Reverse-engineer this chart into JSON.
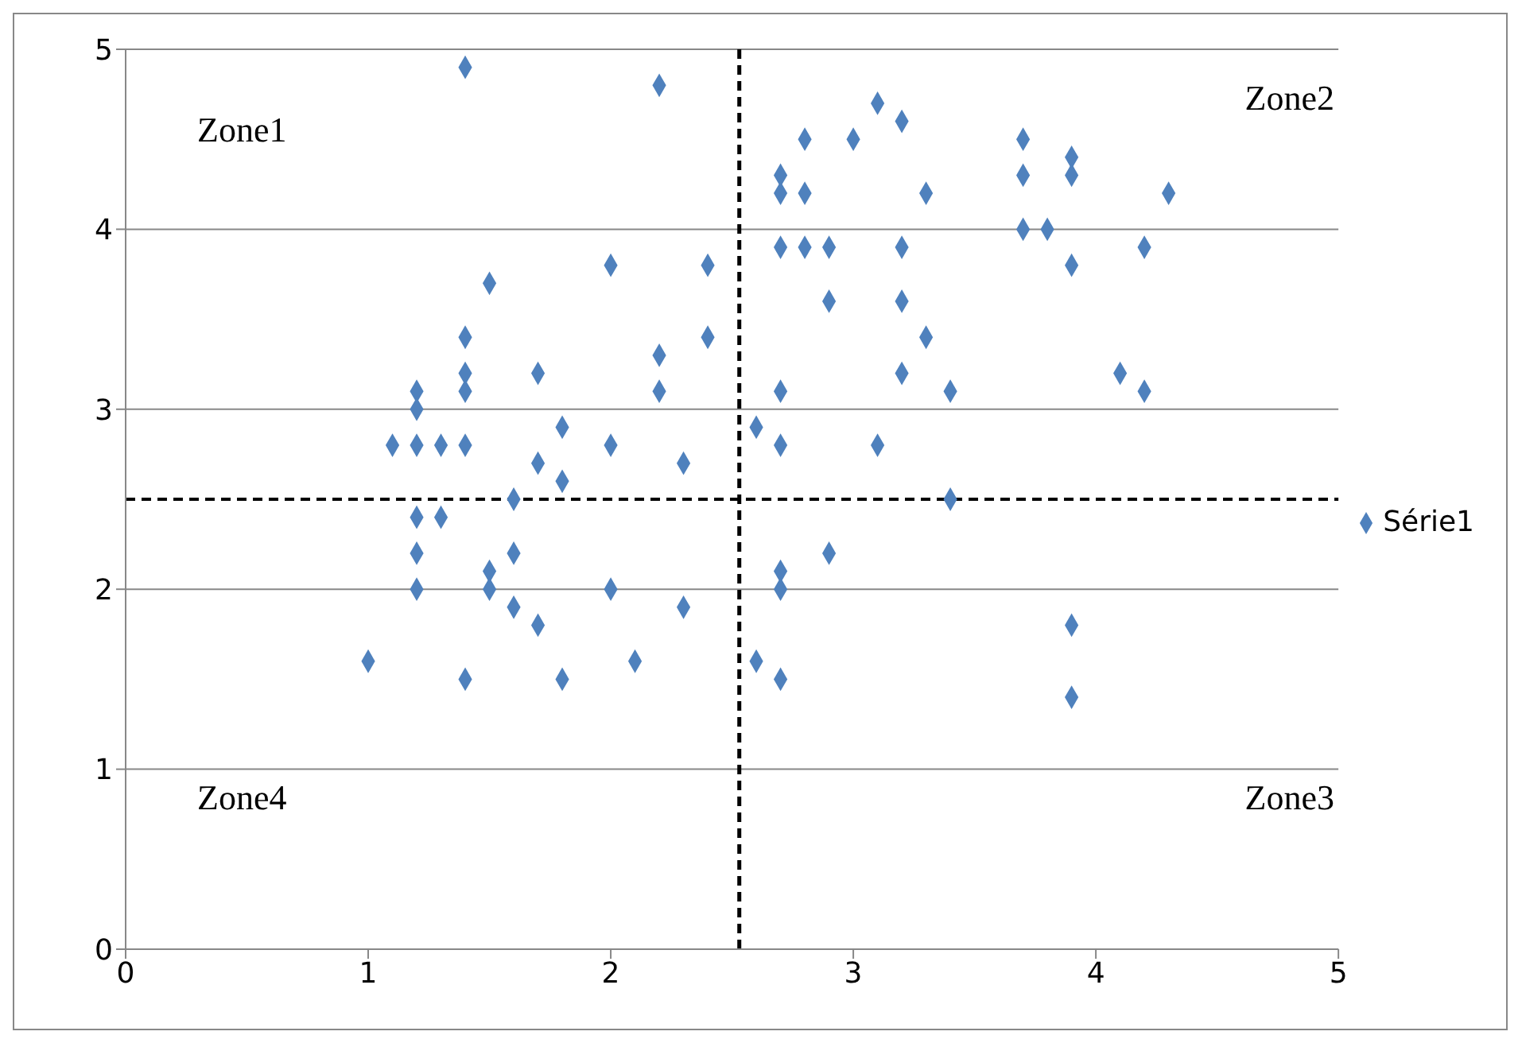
{
  "chart_data": {
    "type": "scatter",
    "xlim": [
      0,
      5
    ],
    "xticks": [
      0,
      1,
      2,
      3,
      4,
      5
    ],
    "ylim": [
      0,
      5
    ],
    "yticks": [
      0,
      1,
      2,
      3,
      4,
      5
    ],
    "grid": "y",
    "legend": "right",
    "marker": "diamond",
    "annotations": [
      "Zone1",
      "Zone2",
      "Zone3",
      "Zone4"
    ],
    "ref_lines": [
      {
        "axis": "x",
        "value": 2.53,
        "color": "#000000",
        "line_style": "dashed"
      },
      {
        "axis": "y",
        "value": 2.5,
        "color": "#000000",
        "line_style": "dashed"
      }
    ],
    "series": [
      {
        "name": "Série1",
        "color": "#4f81bd",
        "x": [
          1.4,
          2.2,
          3.1,
          3.2,
          2.8,
          3.0,
          3.7,
          2.7,
          3.9,
          3.7,
          3.9,
          2.7,
          2.8,
          3.3,
          4.3,
          3.7,
          3.8,
          2.7,
          2.8,
          2.9,
          3.2,
          4.2,
          2.0,
          2.4,
          3.9,
          1.5,
          2.9,
          3.2,
          1.4,
          2.4,
          3.3,
          2.2,
          1.4,
          1.7,
          3.2,
          4.1,
          1.2,
          1.4,
          2.2,
          2.7,
          3.4,
          4.2,
          1.2,
          1.8,
          2.6,
          1.1,
          1.2,
          1.3,
          1.4,
          2.0,
          2.7,
          3.1,
          1.7,
          2.3,
          1.8,
          1.6,
          3.4,
          1.2,
          1.3,
          1.2,
          1.6,
          2.9,
          1.5,
          2.7,
          1.2,
          1.5,
          2.0,
          2.7,
          1.6,
          2.3,
          1.7,
          3.9,
          1.0,
          2.1,
          2.6,
          1.4,
          1.8,
          2.7,
          3.9
        ],
        "values": [
          4.9,
          4.8,
          4.7,
          4.6,
          4.5,
          4.5,
          4.5,
          4.3,
          4.4,
          4.3,
          4.3,
          4.2,
          4.2,
          4.2,
          4.2,
          4.0,
          4.0,
          3.9,
          3.9,
          3.9,
          3.9,
          3.9,
          3.8,
          3.8,
          3.8,
          3.7,
          3.6,
          3.6,
          3.4,
          3.4,
          3.4,
          3.3,
          3.2,
          3.2,
          3.2,
          3.2,
          3.1,
          3.1,
          3.1,
          3.1,
          3.1,
          3.1,
          3.0,
          2.9,
          2.9,
          2.8,
          2.8,
          2.8,
          2.8,
          2.8,
          2.8,
          2.8,
          2.7,
          2.7,
          2.6,
          2.5,
          2.5,
          2.4,
          2.4,
          2.2,
          2.2,
          2.2,
          2.1,
          2.1,
          2.0,
          2.0,
          2.0,
          2.0,
          1.9,
          1.9,
          1.8,
          1.8,
          1.6,
          1.6,
          1.6,
          1.5,
          1.5,
          1.5,
          1.4
        ]
      }
    ]
  }
}
